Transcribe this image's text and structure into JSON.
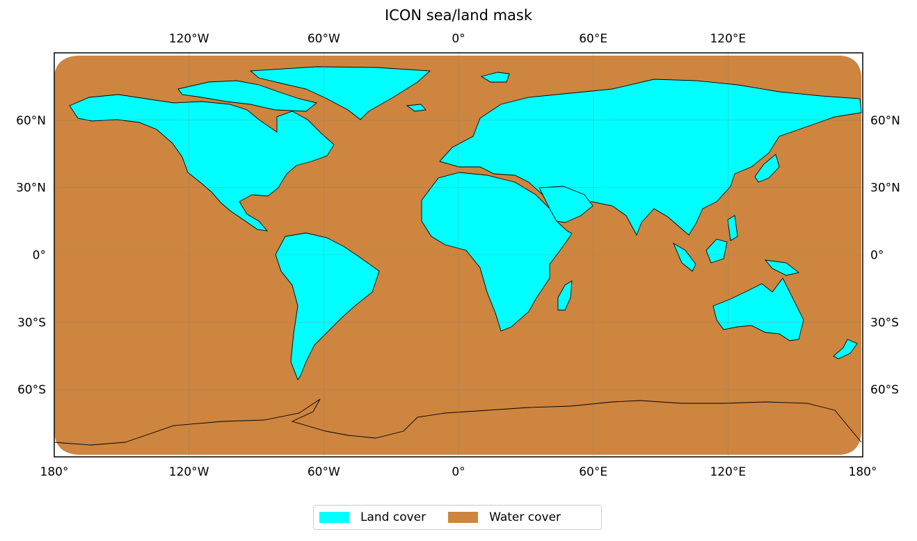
{
  "title": "ICON sea/land mask",
  "colors": {
    "land": "#00ffff",
    "water": "#cd853f",
    "coast": "#000000",
    "grid": "#808080"
  },
  "legend": {
    "items": [
      {
        "label": "Land cover",
        "color": "#00ffff"
      },
      {
        "label": "Water cover",
        "color": "#cd853f"
      }
    ]
  },
  "axes": {
    "lon_range": [
      -180,
      180
    ],
    "lat_range": [
      -90,
      90
    ],
    "bottom_ticks": [
      {
        "value": -180,
        "label": "180°"
      },
      {
        "value": -120,
        "label": "120°W"
      },
      {
        "value": -60,
        "label": "60°W"
      },
      {
        "value": 0,
        "label": "0°"
      },
      {
        "value": 60,
        "label": "60°E"
      },
      {
        "value": 120,
        "label": "120°E"
      },
      {
        "value": 180,
        "label": "180°"
      }
    ],
    "top_ticks": [
      {
        "value": -120,
        "label": "120°W"
      },
      {
        "value": -60,
        "label": "60°W"
      },
      {
        "value": 0,
        "label": "0°"
      },
      {
        "value": 60,
        "label": "60°E"
      },
      {
        "value": 120,
        "label": "120°E"
      }
    ],
    "lat_ticks": [
      {
        "value": 60,
        "label": "60°N"
      },
      {
        "value": 30,
        "label": "30°N"
      },
      {
        "value": 0,
        "label": "0°"
      },
      {
        "value": -30,
        "label": "30°S"
      },
      {
        "value": -60,
        "label": "60°S"
      }
    ],
    "grid": true,
    "projection": "PlateCarree"
  }
}
